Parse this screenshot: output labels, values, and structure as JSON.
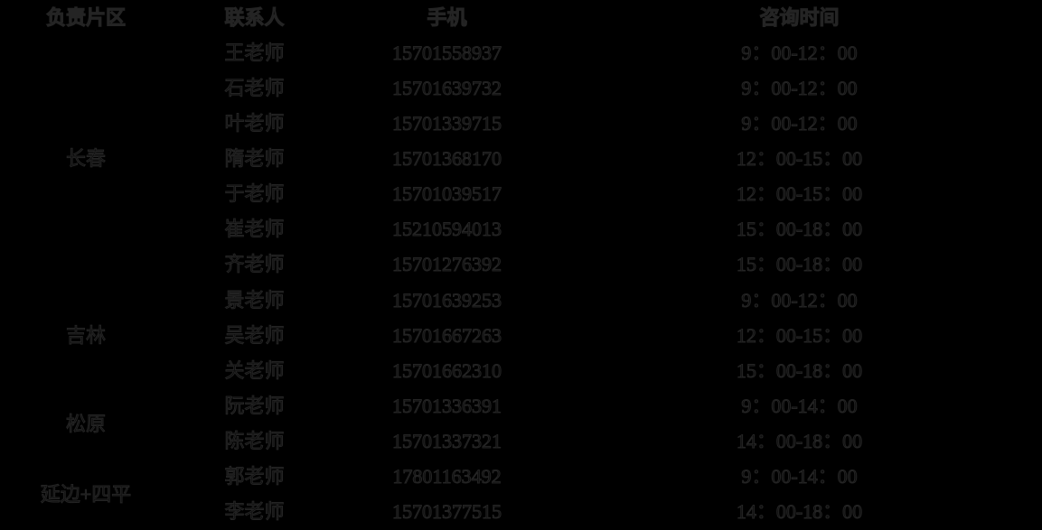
{
  "page": {
    "background_color": "#000000",
    "text_fill_color": "#0e0e0e",
    "text_outline_color": "#242424"
  },
  "table": {
    "columns": [
      {
        "key": "area",
        "label": "负责片区"
      },
      {
        "key": "contact",
        "label": "联系人"
      },
      {
        "key": "phone",
        "label": "手机"
      },
      {
        "key": "time",
        "label": "咨询时间"
      }
    ],
    "area_groups": [
      {
        "area": "长春",
        "rows": [
          {
            "contact": "王老师",
            "phone": "15701558937",
            "time": "9：00-12：00"
          },
          {
            "contact": "石老师",
            "phone": "15701639732",
            "time": "9：00-12：00"
          },
          {
            "contact": "叶老师",
            "phone": "15701339715",
            "time": "9：00-12：00"
          },
          {
            "contact": "隋老师",
            "phone": "15701368170",
            "time": "12：00-15：00"
          },
          {
            "contact": "于老师",
            "phone": "15701039517",
            "time": "12：00-15：00"
          },
          {
            "contact": "崔老师",
            "phone": "15210594013",
            "time": "15：00-18：00"
          },
          {
            "contact": "齐老师",
            "phone": "15701276392",
            "time": "15：00-18：00"
          }
        ]
      },
      {
        "area": "吉林",
        "rows": [
          {
            "contact": "景老师",
            "phone": "15701639253",
            "time": "9：00-12：00"
          },
          {
            "contact": "吴老师",
            "phone": "15701667263",
            "time": "12：00-15：00"
          },
          {
            "contact": "关老师",
            "phone": "15701662310",
            "time": "15：00-18：00"
          }
        ]
      },
      {
        "area": "松原",
        "rows": [
          {
            "contact": "阮老师",
            "phone": "15701336391",
            "time": "9：00-14：00"
          },
          {
            "contact": "陈老师",
            "phone": "15701337321",
            "time": "14：00-18：00"
          }
        ]
      },
      {
        "area": "延边+四平",
        "rows": [
          {
            "contact": "郭老师",
            "phone": "17801163492",
            "time": "9：00-14：00"
          },
          {
            "contact": "李老师",
            "phone": "15701377515",
            "time": "14：00-18：00"
          }
        ]
      }
    ]
  }
}
